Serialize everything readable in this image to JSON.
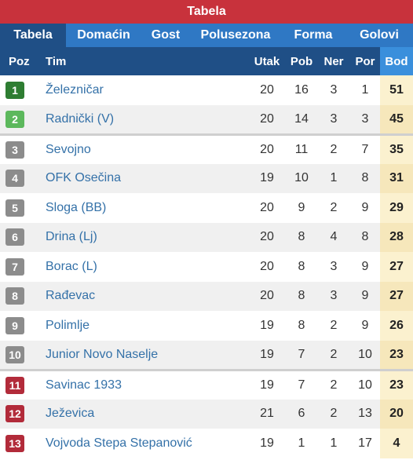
{
  "header": {
    "title": "Tabela"
  },
  "tabs": [
    {
      "label": "Tabela",
      "active": true
    },
    {
      "label": "Domaćin",
      "active": false
    },
    {
      "label": "Gost",
      "active": false
    },
    {
      "label": "Polusezona",
      "active": false
    },
    {
      "label": "Forma",
      "active": false
    },
    {
      "label": "Golovi",
      "active": false
    }
  ],
  "columns": {
    "poz": "Poz",
    "tim": "Tim",
    "utak": "Utak",
    "pob": "Pob",
    "ner": "Ner",
    "por": "Por",
    "bod": "Bod"
  },
  "colors": {
    "promotion": "#2e7d32",
    "qualification": "#5cb85c",
    "neutral": "#8c8c8c",
    "relegation": "#b22b3a"
  },
  "rows": [
    {
      "pos": "1",
      "team": "Železničar",
      "utak": "20",
      "pob": "16",
      "ner": "3",
      "por": "1",
      "bod": "51",
      "zone": "promotion"
    },
    {
      "pos": "2",
      "team": "Radnički (V)",
      "utak": "20",
      "pob": "14",
      "ner": "3",
      "por": "3",
      "bod": "45",
      "zone": "qualification"
    },
    {
      "pos": "3",
      "team": "Sevojno",
      "utak": "20",
      "pob": "11",
      "ner": "2",
      "por": "7",
      "bod": "35",
      "zone": "neutral"
    },
    {
      "pos": "4",
      "team": "OFK Osečina",
      "utak": "19",
      "pob": "10",
      "ner": "1",
      "por": "8",
      "bod": "31",
      "zone": "neutral"
    },
    {
      "pos": "5",
      "team": "Sloga (BB)",
      "utak": "20",
      "pob": "9",
      "ner": "2",
      "por": "9",
      "bod": "29",
      "zone": "neutral"
    },
    {
      "pos": "6",
      "team": "Drina (Lj)",
      "utak": "20",
      "pob": "8",
      "ner": "4",
      "por": "8",
      "bod": "28",
      "zone": "neutral"
    },
    {
      "pos": "7",
      "team": "Borac (L)",
      "utak": "20",
      "pob": "8",
      "ner": "3",
      "por": "9",
      "bod": "27",
      "zone": "neutral"
    },
    {
      "pos": "8",
      "team": "Rađevac",
      "utak": "20",
      "pob": "8",
      "ner": "3",
      "por": "9",
      "bod": "27",
      "zone": "neutral"
    },
    {
      "pos": "9",
      "team": "Polimlje",
      "utak": "19",
      "pob": "8",
      "ner": "2",
      "por": "9",
      "bod": "26",
      "zone": "neutral"
    },
    {
      "pos": "10",
      "team": "Junior Novo Naselje",
      "utak": "19",
      "pob": "7",
      "ner": "2",
      "por": "10",
      "bod": "23",
      "zone": "neutral"
    },
    {
      "pos": "11",
      "team": "Savinac 1933",
      "utak": "19",
      "pob": "7",
      "ner": "2",
      "por": "10",
      "bod": "23",
      "zone": "relegation"
    },
    {
      "pos": "12",
      "team": "Ježevica",
      "utak": "21",
      "pob": "6",
      "ner": "2",
      "por": "13",
      "bod": "20",
      "zone": "relegation"
    },
    {
      "pos": "13",
      "team": "Vojvoda Stepa Stepanović",
      "utak": "19",
      "pob": "1",
      "ner": "1",
      "por": "17",
      "bod": "4",
      "zone": "relegation"
    }
  ]
}
